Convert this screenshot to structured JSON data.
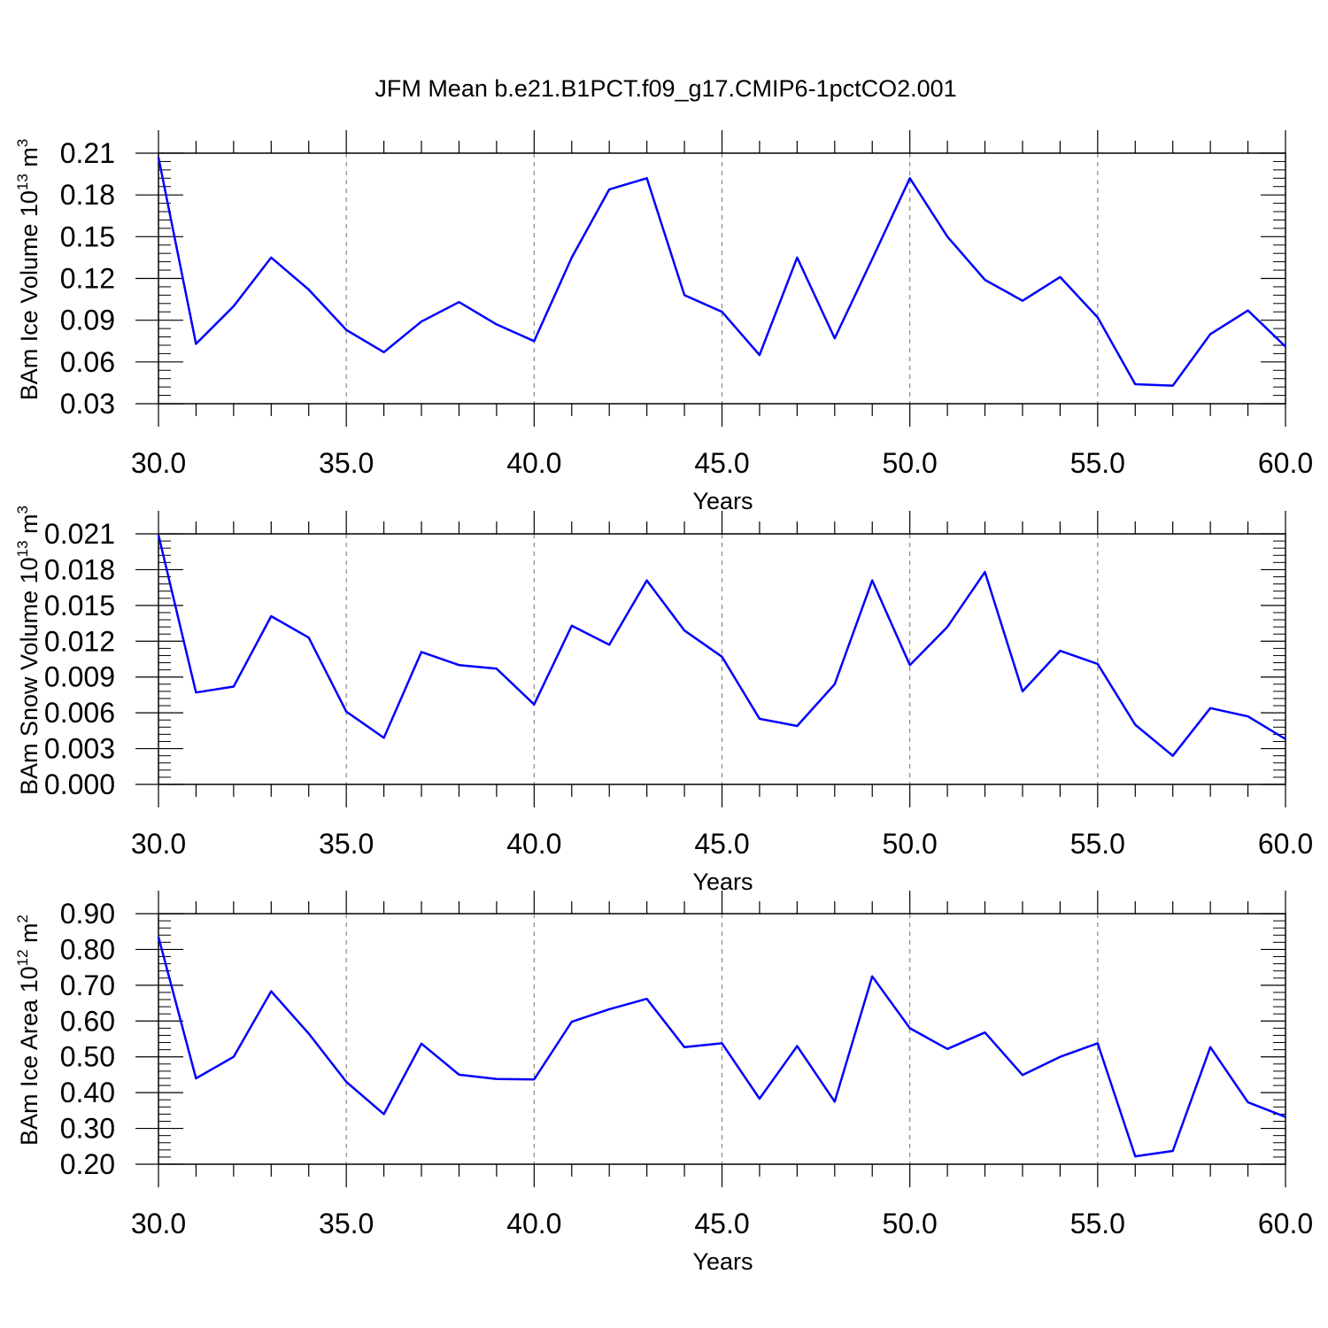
{
  "title": "JFM Mean b.e21.B1PCT.f09_g17.CMIP6-1pctCO2.001",
  "colors": {
    "line": "#0000ff",
    "axis": "#000000",
    "grid": "#888888"
  },
  "chart_data": [
    {
      "type": "line",
      "ylabel": {
        "base": "BAm Ice Volume 10",
        "exp": "13",
        "unit": " m",
        "unit_exp": "3"
      },
      "xlabel": "Years",
      "xlim": [
        30,
        60
      ],
      "ylim": [
        0.03,
        0.21
      ],
      "xticks": [
        "30.0",
        "35.0",
        "40.0",
        "45.0",
        "50.0",
        "55.0",
        "60.0"
      ],
      "yticks": [
        "0.03",
        "0.06",
        "0.09",
        "0.12",
        "0.15",
        "0.18",
        "0.21"
      ],
      "grid": "vertical dashed at major x ticks",
      "x": [
        30,
        31,
        32,
        33,
        34,
        35,
        36,
        37,
        38,
        39,
        40,
        41,
        42,
        43,
        44,
        45,
        46,
        47,
        48,
        49,
        50,
        51,
        52,
        53,
        54,
        55,
        56,
        57,
        58,
        59,
        60
      ],
      "y": [
        0.207,
        0.073,
        0.1,
        0.135,
        0.112,
        0.083,
        0.067,
        0.089,
        0.103,
        0.087,
        0.075,
        0.135,
        0.184,
        0.192,
        0.108,
        0.096,
        0.065,
        0.135,
        0.077,
        0.134,
        0.192,
        0.15,
        0.119,
        0.104,
        0.121,
        0.092,
        0.044,
        0.043,
        0.08,
        0.097,
        0.071
      ]
    },
    {
      "type": "line",
      "ylabel": {
        "base": "BAm Snow Volume 10",
        "exp": "13",
        "unit": " m",
        "unit_exp": "3"
      },
      "xlabel": "Years",
      "xlim": [
        30,
        60
      ],
      "ylim": [
        0.0,
        0.021
      ],
      "xticks": [
        "30.0",
        "35.0",
        "40.0",
        "45.0",
        "50.0",
        "55.0",
        "60.0"
      ],
      "yticks": [
        "0.000",
        "0.003",
        "0.006",
        "0.009",
        "0.012",
        "0.015",
        "0.018",
        "0.021"
      ],
      "grid": "vertical dashed at major x ticks",
      "x": [
        30,
        31,
        32,
        33,
        34,
        35,
        36,
        37,
        38,
        39,
        40,
        41,
        42,
        43,
        44,
        45,
        46,
        47,
        48,
        49,
        50,
        51,
        52,
        53,
        54,
        55,
        56,
        57,
        58,
        59,
        60
      ],
      "y": [
        0.0209,
        0.0077,
        0.0082,
        0.0141,
        0.0123,
        0.0061,
        0.0039,
        0.0111,
        0.01,
        0.0097,
        0.0067,
        0.0133,
        0.0117,
        0.0171,
        0.0129,
        0.0107,
        0.0055,
        0.0049,
        0.0084,
        0.0171,
        0.01,
        0.0132,
        0.0178,
        0.0078,
        0.0112,
        0.0101,
        0.005,
        0.0024,
        0.0064,
        0.0057,
        0.0038
      ]
    },
    {
      "type": "line",
      "ylabel": {
        "base": "BAm Ice Area 10",
        "exp": "12",
        "unit": " m",
        "unit_exp": "2"
      },
      "xlabel": "Years",
      "xlim": [
        30,
        60
      ],
      "ylim": [
        0.2,
        0.9
      ],
      "xticks": [
        "30.0",
        "35.0",
        "40.0",
        "45.0",
        "50.0",
        "55.0",
        "60.0"
      ],
      "yticks": [
        "0.20",
        "0.30",
        "0.40",
        "0.50",
        "0.60",
        "0.70",
        "0.80",
        "0.90"
      ],
      "grid": "vertical dashed at major x ticks",
      "x": [
        30,
        31,
        32,
        33,
        34,
        35,
        36,
        37,
        38,
        39,
        40,
        41,
        42,
        43,
        44,
        45,
        46,
        47,
        48,
        49,
        50,
        51,
        52,
        53,
        54,
        55,
        56,
        57,
        58,
        59,
        60
      ],
      "y": [
        0.835,
        0.44,
        0.5,
        0.683,
        0.565,
        0.43,
        0.34,
        0.537,
        0.45,
        0.438,
        0.437,
        0.598,
        0.633,
        0.662,
        0.527,
        0.538,
        0.383,
        0.53,
        0.375,
        0.725,
        0.58,
        0.522,
        0.568,
        0.449,
        0.5,
        0.538,
        0.222,
        0.237,
        0.527,
        0.373,
        0.332
      ]
    }
  ]
}
